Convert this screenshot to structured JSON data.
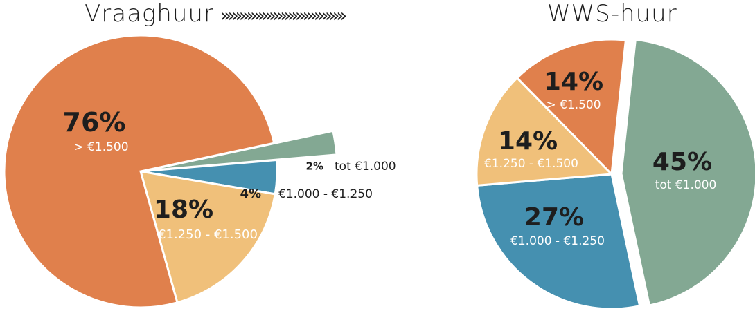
{
  "titles": {
    "left": "Vraaghuur",
    "right": "WWS-huur"
  },
  "arrows": "›››››››››››››››››››››››››››››››››",
  "colors": {
    "orange": "#e0804c",
    "yellow": "#f0c07a",
    "blue": "#4590b0",
    "green": "#83a893"
  },
  "chart_data": [
    {
      "type": "pie",
      "title": "Vraaghuur",
      "slices": [
        {
          "label": "tot €1.000",
          "value": 2,
          "pct_label": "2%",
          "color": "#83a893"
        },
        {
          "label": "€1.000 - €1.250",
          "value": 4,
          "pct_label": "4%",
          "color": "#4590b0"
        },
        {
          "label": "€1.250 - €1.500",
          "value": 18,
          "pct_label": "18%",
          "color": "#f0c07a"
        },
        {
          "label": "> €1.500",
          "value": 76,
          "pct_label": "76%",
          "color": "#e0804c"
        }
      ]
    },
    {
      "type": "pie",
      "title": "WWS-huur",
      "slices": [
        {
          "label": "tot €1.000",
          "value": 45,
          "pct_label": "45%",
          "color": "#83a893"
        },
        {
          "label": "€1.000 - €1.250",
          "value": 27,
          "pct_label": "27%",
          "color": "#4590b0"
        },
        {
          "label": "€1.250 - €1.500",
          "value": 14,
          "pct_label": "14%",
          "color": "#f0c07a"
        },
        {
          "label": "> €1.500",
          "value": 14,
          "pct_label": "14%",
          "color": "#e0804c"
        }
      ]
    }
  ]
}
